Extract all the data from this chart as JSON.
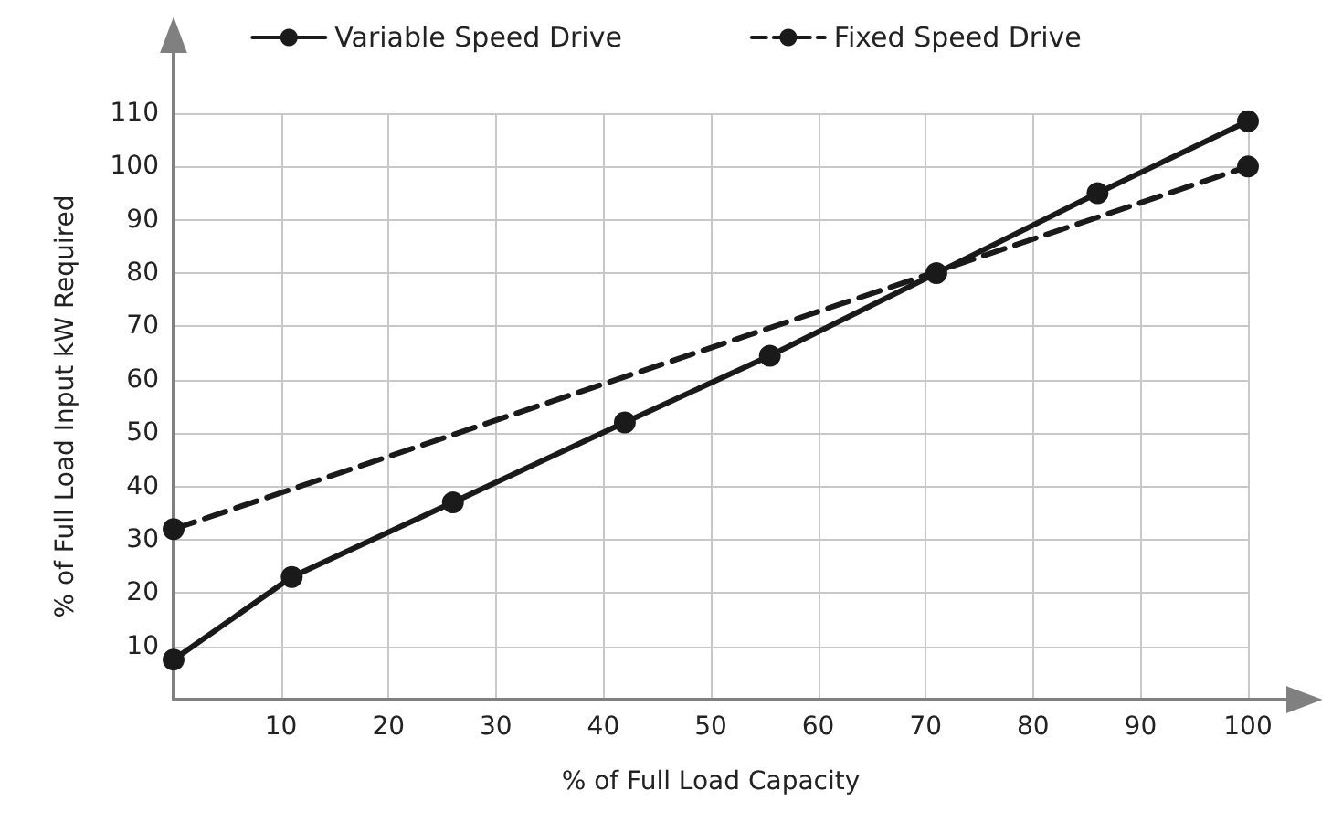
{
  "chart_data": {
    "type": "line",
    "xlabel": "% of Full Load Capacity",
    "ylabel": "% of Full Load Input kW Required",
    "series": [
      {
        "name": "Variable Speed Drive",
        "color": "#1a1a1a",
        "line_style": "solid",
        "x": [
          0,
          11,
          26,
          42,
          55.5,
          71,
          86,
          100
        ],
        "values": [
          7.5,
          23,
          37,
          52,
          64.5,
          80,
          95,
          108.5
        ]
      },
      {
        "name": "Fixed Speed Drive",
        "color": "#1a1a1a",
        "line_style": "dashed",
        "x": [
          0,
          100
        ],
        "values": [
          32,
          100
        ]
      }
    ],
    "xlim": [
      0,
      100
    ],
    "xticks": [
      {
        "value": 0,
        "label": null
      },
      10,
      20,
      30,
      40,
      50,
      60,
      70,
      80,
      90,
      100
    ],
    "ylim": [
      0,
      110
    ],
    "yticks": [
      {
        "value": 0,
        "label": null
      },
      10,
      20,
      30,
      40,
      50,
      60,
      70,
      80,
      90,
      100,
      110
    ],
    "grid": true,
    "legend": "top",
    "marker": "circle"
  }
}
